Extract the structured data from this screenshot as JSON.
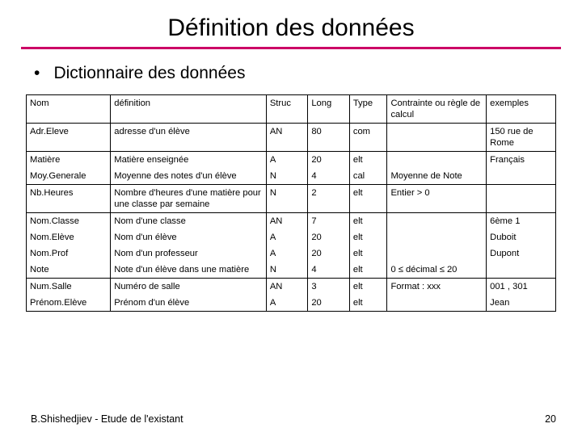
{
  "colors": {
    "accent": "#cc0066",
    "text": "#000000",
    "background": "#ffffff",
    "border": "#000000"
  },
  "title": "Définition des données",
  "subtitle": "Dictionnaire des données",
  "footer": "B.Shishedjiev -  Etude de l'existant",
  "page_number": "20",
  "table": {
    "columns": [
      "Nom",
      "définition",
      "Struc",
      "Long",
      "Type",
      "Contrainte ou règle de calcul",
      "exemples"
    ],
    "groups": [
      [
        {
          "nom": "Nom",
          "def": "définition",
          "struc": "Struc",
          "long": "Long",
          "type": "Type",
          "cont": "Contrainte ou règle de calcul",
          "ex": "exemples"
        }
      ],
      [
        {
          "nom": "Adr.Eleve",
          "def": "adresse d'un élève",
          "struc": "AN",
          "long": "80",
          "type": "com",
          "cont": "",
          "ex": "150 rue de Rome"
        }
      ],
      [
        {
          "nom": "Matière",
          "def": "Matière enseignée",
          "struc": "A",
          "long": "20",
          "type": "elt",
          "cont": "",
          "ex": "Français"
        },
        {
          "nom": "Moy.Generale",
          "def": "Moyenne des notes d'un élève",
          "struc": "N",
          "long": "4",
          "type": "cal",
          "cont": "Moyenne de Note",
          "ex": ""
        }
      ],
      [
        {
          "nom": "Nb.Heures",
          "def": "Nombre d'heures d'une matière pour une classe par semaine",
          "struc": "N",
          "long": "2",
          "type": "elt",
          "cont": "Entier > 0",
          "ex": ""
        }
      ],
      [
        {
          "nom": "Nom.Classe",
          "def": "Nom d'une classe",
          "struc": "AN",
          "long": "7",
          "type": "elt",
          "cont": "",
          "ex": "6ème 1"
        },
        {
          "nom": "Nom.Elève",
          "def": "Nom d'un élève",
          "struc": "A",
          "long": "20",
          "type": "elt",
          "cont": "",
          "ex": "Duboit"
        },
        {
          "nom": "Nom.Prof",
          "def": "Nom d'un professeur",
          "struc": "A",
          "long": "20",
          "type": "elt",
          "cont": "",
          "ex": "Dupont"
        },
        {
          "nom": "Note",
          "def": "Note d'un élève dans une matière",
          "struc": "N",
          "long": "4",
          "type": "elt",
          "cont": "0 ≤ décimal ≤ 20",
          "ex": ""
        }
      ],
      [
        {
          "nom": "Num.Salle",
          "def": "Numéro de salle",
          "struc": "AN",
          "long": "3",
          "type": "elt",
          "cont": "Format : xxx",
          "ex": "001 , 301"
        },
        {
          "nom": "Prénom.Elève",
          "def": "Prénom d'un élève",
          "struc": "A",
          "long": "20",
          "type": "elt",
          "cont": "",
          "ex": "Jean"
        }
      ]
    ]
  }
}
